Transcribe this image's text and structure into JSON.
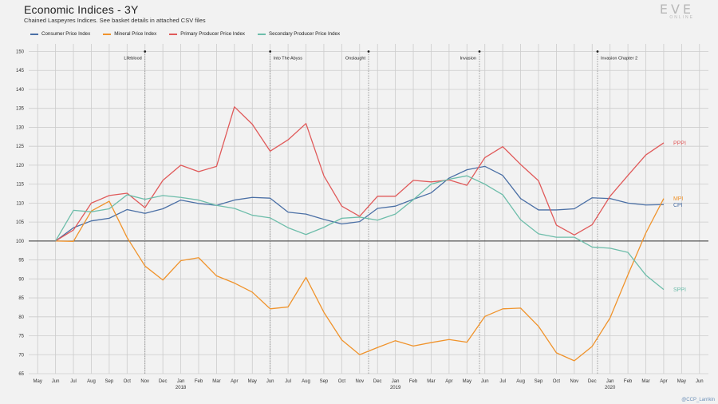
{
  "title": "Economic Indices - 3Y",
  "subtitle": "Chained Laspeyres Indices. See basket details in attached CSV files",
  "logo": {
    "main": "EVE",
    "sub": "ONLINE"
  },
  "credit": "@CCP_Larrikin",
  "colors": {
    "cpi": "#4a6fa5",
    "mpi": "#f0932b",
    "pppi": "#e05a5a",
    "sppi": "#6dbdaa",
    "baseline": "#333333",
    "grid": "#cccccc"
  },
  "chart_data": {
    "type": "line",
    "title": "Economic Indices - 3Y",
    "x": [
      "May",
      "Jun",
      "Jul",
      "Aug",
      "Sep",
      "Oct",
      "Nov",
      "Dec",
      "Jan",
      "Feb",
      "Mar",
      "Apr",
      "May",
      "Jun",
      "Jul",
      "Aug",
      "Sep",
      "Oct",
      "Nov",
      "Dec",
      "Jan",
      "Feb",
      "Mar",
      "Apr",
      "May",
      "Jun",
      "Jul",
      "Aug",
      "Sep",
      "Oct",
      "Nov",
      "Dec",
      "Jan",
      "Feb",
      "Mar",
      "Apr",
      "May",
      "Jun"
    ],
    "year_labels": [
      {
        "index": 8,
        "label": "2018"
      },
      {
        "index": 20,
        "label": "2019"
      },
      {
        "index": 32,
        "label": "2020"
      }
    ],
    "ylim": [
      65,
      152
    ],
    "yticks": [
      65,
      70,
      75,
      80,
      85,
      90,
      95,
      100,
      105,
      110,
      115,
      120,
      125,
      130,
      135,
      140,
      145,
      150
    ],
    "baseline": 100,
    "grid": true,
    "legend": "top-left",
    "series": [
      {
        "name": "Consumer Price Index",
        "end_label": "CPI",
        "color": "#4a6fa5",
        "values": [
          null,
          100.0,
          103.5,
          105.3,
          106.0,
          108.3,
          107.3,
          108.5,
          110.8,
          109.9,
          109.4,
          110.8,
          111.5,
          111.3,
          107.6,
          107.1,
          105.7,
          104.5,
          105.1,
          108.6,
          109.2,
          111.0,
          112.7,
          116.6,
          118.8,
          119.7,
          117.3,
          111.2,
          108.2,
          108.2,
          108.5,
          111.4,
          111.2,
          110.0,
          109.5,
          109.6,
          null,
          null
        ]
      },
      {
        "name": "Mineral Price Index",
        "end_label": "MPI",
        "color": "#f0932b",
        "values": [
          null,
          100.0,
          99.9,
          107.9,
          110.5,
          100.9,
          93.4,
          89.7,
          94.8,
          95.6,
          90.8,
          88.9,
          86.5,
          82.1,
          82.6,
          90.4,
          81.2,
          73.9,
          70.0,
          71.9,
          73.7,
          72.3,
          73.2,
          74.0,
          73.3,
          80.1,
          82.1,
          82.3,
          77.5,
          70.5,
          68.4,
          72.2,
          79.7,
          91.1,
          102.1,
          111.2,
          null,
          null
        ]
      },
      {
        "name": "Primary Producer Price Index",
        "end_label": "PPPI",
        "color": "#e05a5a",
        "values": [
          null,
          100.0,
          102.9,
          110.0,
          112.0,
          112.6,
          108.8,
          116.0,
          120.0,
          118.3,
          119.7,
          135.4,
          130.8,
          123.7,
          126.7,
          131.0,
          117.2,
          109.2,
          106.5,
          111.8,
          111.8,
          116.0,
          115.6,
          116.1,
          114.7,
          122.0,
          124.9,
          120.2,
          115.9,
          104.2,
          101.6,
          104.3,
          111.8,
          117.3,
          122.7,
          125.9,
          null,
          null
        ]
      },
      {
        "name": "Secondary Producer Price Index",
        "end_label": "SPPI",
        "color": "#6dbdaa",
        "values": [
          null,
          100.0,
          108.1,
          107.7,
          108.5,
          112.2,
          111.0,
          112.0,
          111.5,
          110.8,
          109.4,
          108.6,
          106.8,
          106.1,
          103.5,
          101.7,
          103.6,
          106.0,
          106.3,
          105.5,
          107.1,
          110.9,
          115.0,
          116.3,
          117.2,
          115.0,
          112.2,
          105.6,
          101.9,
          101.0,
          101.0,
          98.4,
          98.1,
          97.0,
          91.0,
          87.2,
          null,
          null
        ]
      }
    ],
    "annotations": [
      {
        "label": "Lifeblood",
        "x_index": 6,
        "y": 150,
        "side": "left"
      },
      {
        "label": "Into The Abyss",
        "x_index": 13,
        "y": 150,
        "side": "right"
      },
      {
        "label": "Onslaught",
        "x_index": 18.5,
        "y": 150,
        "side": "left"
      },
      {
        "label": "Invasion",
        "x_index": 24.7,
        "y": 150,
        "side": "left"
      },
      {
        "label": "Invasion Chapter 2",
        "x_index": 31.3,
        "y": 150,
        "side": "right"
      }
    ]
  }
}
